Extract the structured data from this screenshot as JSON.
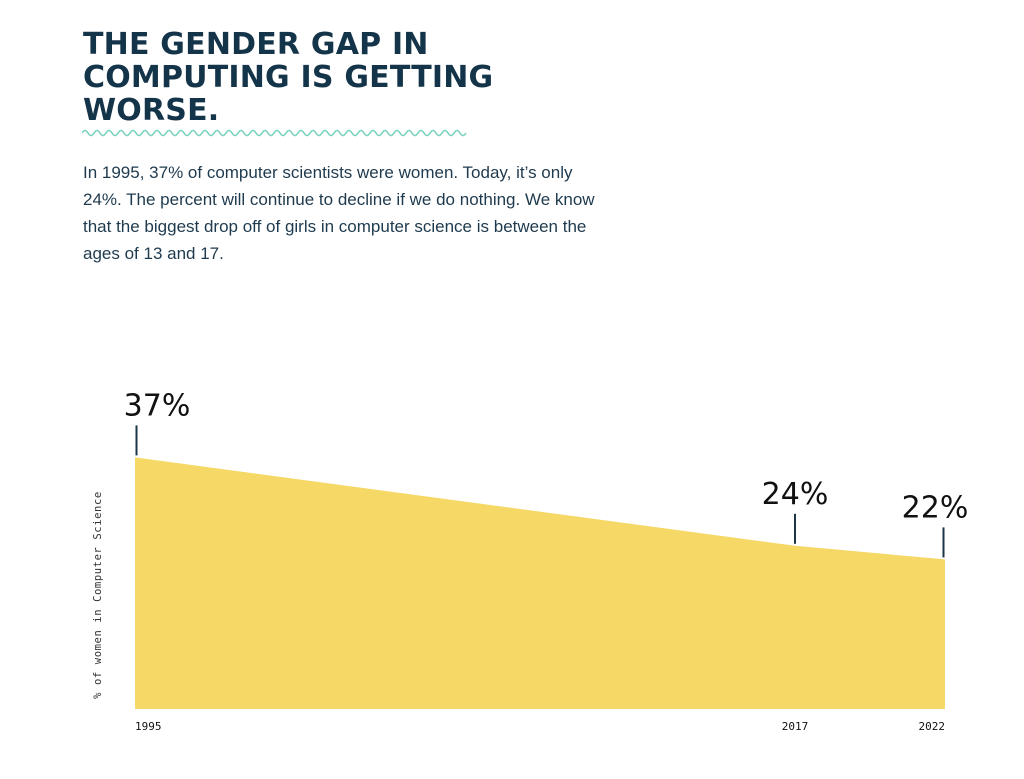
{
  "header": {
    "title": "THE GENDER GAP IN COMPUTING IS GETTING WORSE.",
    "body": "In 1995, 37% of computer scientists were women. Today, it’s only 24%. The percent will continue to decline if we do nothing. We know that the biggest drop off of girls in computer science is between the ages of 13 and 17."
  },
  "colors": {
    "title": "#14344a",
    "squiggle": "#7ad3c0",
    "area_fill": "#f5d865",
    "marker": "#1c3547"
  },
  "chart_data": {
    "type": "area",
    "title": "",
    "xlabel": "",
    "ylabel": "% of women in Computer Science",
    "x": [
      1995,
      2017,
      2022
    ],
    "series": [
      {
        "values": [
          37,
          24,
          22
        ]
      }
    ],
    "tick_labels": [
      "1995",
      "2017",
      "2022"
    ],
    "data_labels": [
      "37%",
      "24%",
      "22%"
    ],
    "grid": false,
    "legend": "none"
  }
}
